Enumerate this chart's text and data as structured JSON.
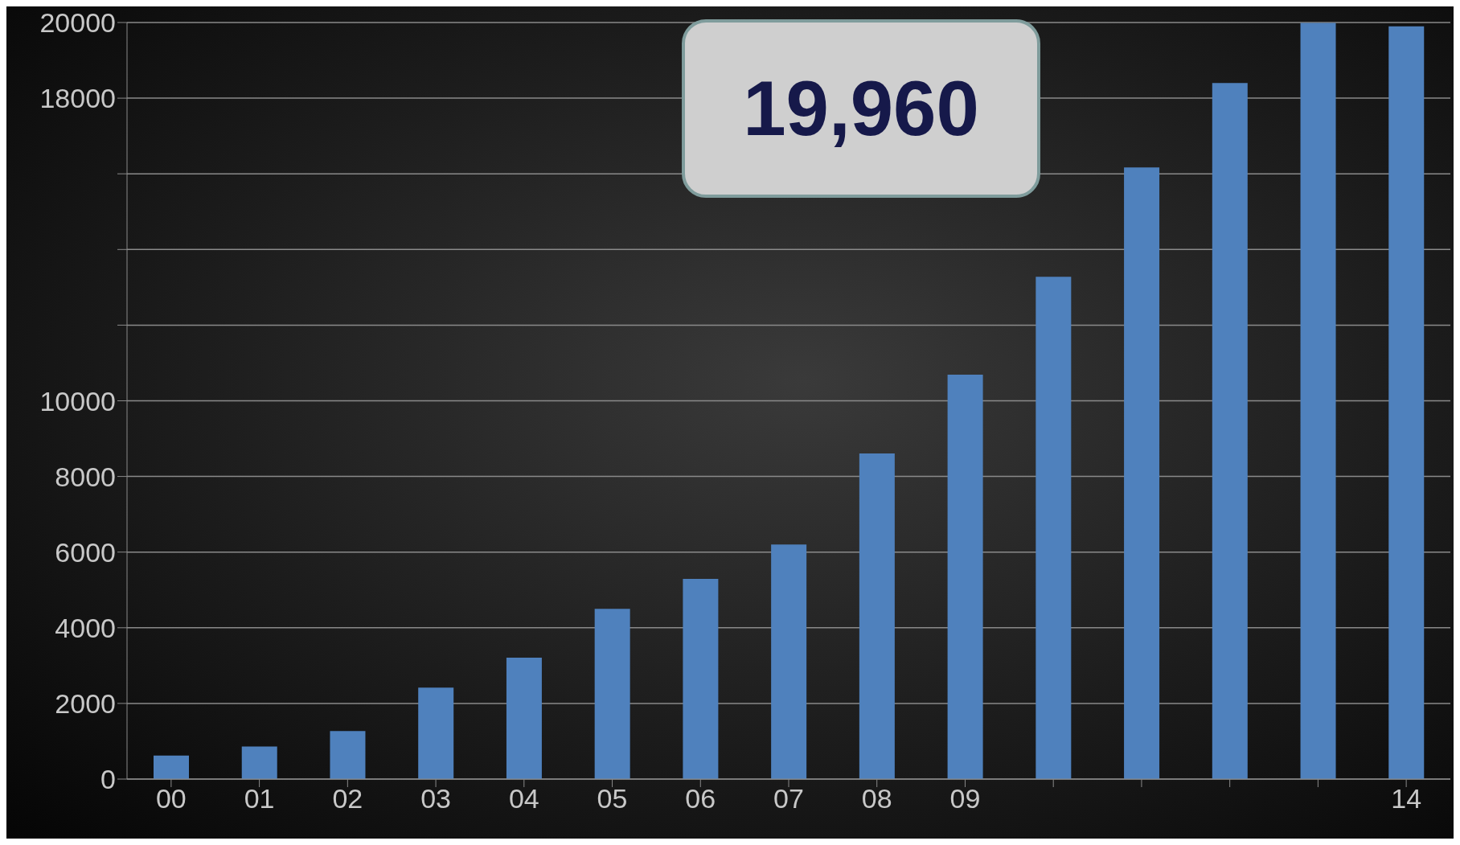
{
  "chart_data": {
    "type": "bar",
    "categories": [
      "00",
      "01",
      "02",
      "03",
      "04",
      "05",
      "06",
      "07",
      "08",
      "09",
      null,
      null,
      null,
      null,
      "14"
    ],
    "values": [
      620,
      860,
      1270,
      2420,
      3210,
      4500,
      5290,
      6200,
      8610,
      10690,
      13280,
      16170,
      18400,
      19990,
      19900
    ],
    "color": "#4f81bd",
    "ylim": [
      0,
      20000
    ],
    "yticks": [
      0,
      2000,
      4000,
      6000,
      8000,
      10000,
      {
        "value": 12000,
        "label": null
      },
      {
        "value": 14000,
        "label": null
      },
      {
        "value": 16000,
        "label": null
      },
      18000,
      20000
    ],
    "grid": "y",
    "annotations": [
      "19,960"
    ]
  }
}
